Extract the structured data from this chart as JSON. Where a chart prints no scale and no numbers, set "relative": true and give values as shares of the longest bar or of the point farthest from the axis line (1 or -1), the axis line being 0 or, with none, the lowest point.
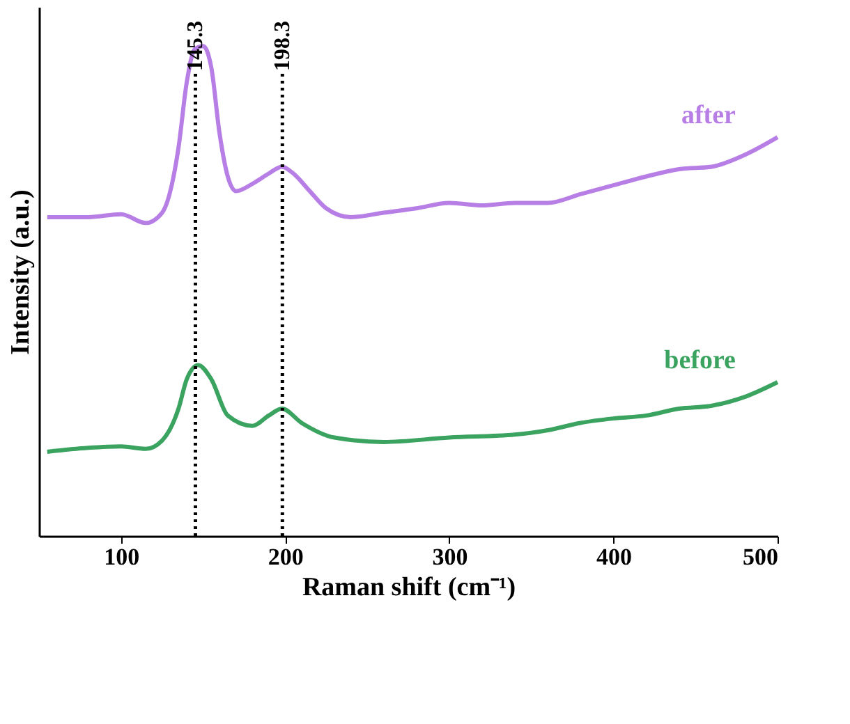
{
  "chart_data": {
    "type": "line",
    "relative": true,
    "xlabel": "Raman shift (cm⁻¹)",
    "ylabel": "Intensity (a.u.)",
    "xlim": [
      50,
      500
    ],
    "xticks": [
      100,
      200,
      300,
      400,
      500
    ],
    "tick_labels": "x",
    "grid": false,
    "legend": false,
    "line_style": "solid",
    "marker": "none",
    "series": [
      {
        "name": "after",
        "color": "#b77ee6",
        "x": [
          55,
          80,
          100,
          115,
          125,
          135,
          140,
          145,
          150,
          155,
          160,
          165,
          170,
          180,
          190,
          198,
          205,
          215,
          225,
          240,
          260,
          280,
          300,
          320,
          340,
          360,
          380,
          400,
          420,
          440,
          460,
          480,
          500
        ],
        "values": [
          0.651,
          0.651,
          0.657,
          0.639,
          0.66,
          0.793,
          0.926,
          0.994,
          1.0,
          0.956,
          0.822,
          0.734,
          0.704,
          0.719,
          0.74,
          0.754,
          0.74,
          0.704,
          0.669,
          0.651,
          0.66,
          0.669,
          0.68,
          0.675,
          0.68,
          0.68,
          0.698,
          0.716,
          0.734,
          0.749,
          0.754,
          0.778,
          0.814
        ]
      },
      {
        "name": "before",
        "color": "#3aa35f",
        "x": [
          55,
          80,
          100,
          115,
          125,
          135,
          140,
          147,
          155,
          165,
          180,
          190,
          198,
          210,
          230,
          260,
          300,
          340,
          360,
          380,
          400,
          420,
          440,
          460,
          480,
          500
        ],
        "values": [
          0.172,
          0.18,
          0.183,
          0.178,
          0.195,
          0.26,
          0.32,
          0.349,
          0.32,
          0.246,
          0.225,
          0.246,
          0.26,
          0.231,
          0.201,
          0.192,
          0.201,
          0.207,
          0.216,
          0.231,
          0.24,
          0.246,
          0.26,
          0.266,
          0.284,
          0.314
        ]
      }
    ],
    "ref_lines": [
      {
        "axis": "x",
        "value": 145.3,
        "label": "145.3",
        "color": "#000000",
        "line_style": "dotted"
      },
      {
        "axis": "x",
        "value": 198.3,
        "label": "198.3",
        "color": "#000000",
        "line_style": "dotted"
      }
    ]
  }
}
